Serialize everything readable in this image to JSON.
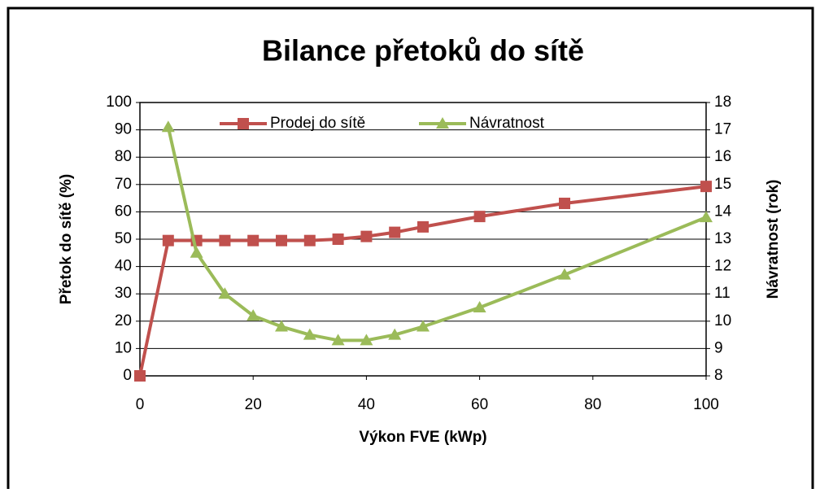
{
  "chart_data": {
    "type": "line",
    "title": "Bilance přetoků do sítě",
    "x_label": "Výkon FVE (kWp)",
    "y_label": "Přetok do sítě (%)",
    "y2_label": "Návratnost (rok)",
    "xlim": [
      0,
      100
    ],
    "xticks": [
      0,
      20,
      40,
      60,
      80,
      100
    ],
    "ylim": [
      0,
      100
    ],
    "yticks": [
      0,
      10,
      20,
      30,
      40,
      50,
      60,
      70,
      80,
      90,
      100
    ],
    "y2lim": [
      8,
      18
    ],
    "y2ticks": [
      8,
      9,
      10,
      11,
      12,
      13,
      14,
      15,
      16,
      17,
      18
    ],
    "grid": true,
    "legend": "top",
    "series": [
      {
        "name": "Prodej do sítě",
        "color": "#c0504d",
        "marker": "square",
        "x": [
          0,
          5,
          10,
          15,
          20,
          25,
          30,
          35,
          40,
          45,
          50,
          60,
          75,
          100
        ],
        "values": [
          0,
          49.5,
          49.5,
          49.5,
          49.5,
          49.5,
          49.5,
          50,
          51,
          52.5,
          54.5,
          58.3,
          63.1,
          69.3
        ]
      },
      {
        "name": "Návratnost",
        "color": "#9bbb59",
        "marker": "triangle",
        "axis": "y2",
        "x": [
          5,
          10,
          15,
          20,
          25,
          30,
          35,
          40,
          45,
          50,
          60,
          75,
          100
        ],
        "values": [
          17.1,
          12.5,
          11.0,
          10.2,
          9.8,
          9.5,
          9.3,
          9.3,
          9.5,
          9.8,
          10.5,
          11.7,
          13.8
        ]
      }
    ]
  }
}
